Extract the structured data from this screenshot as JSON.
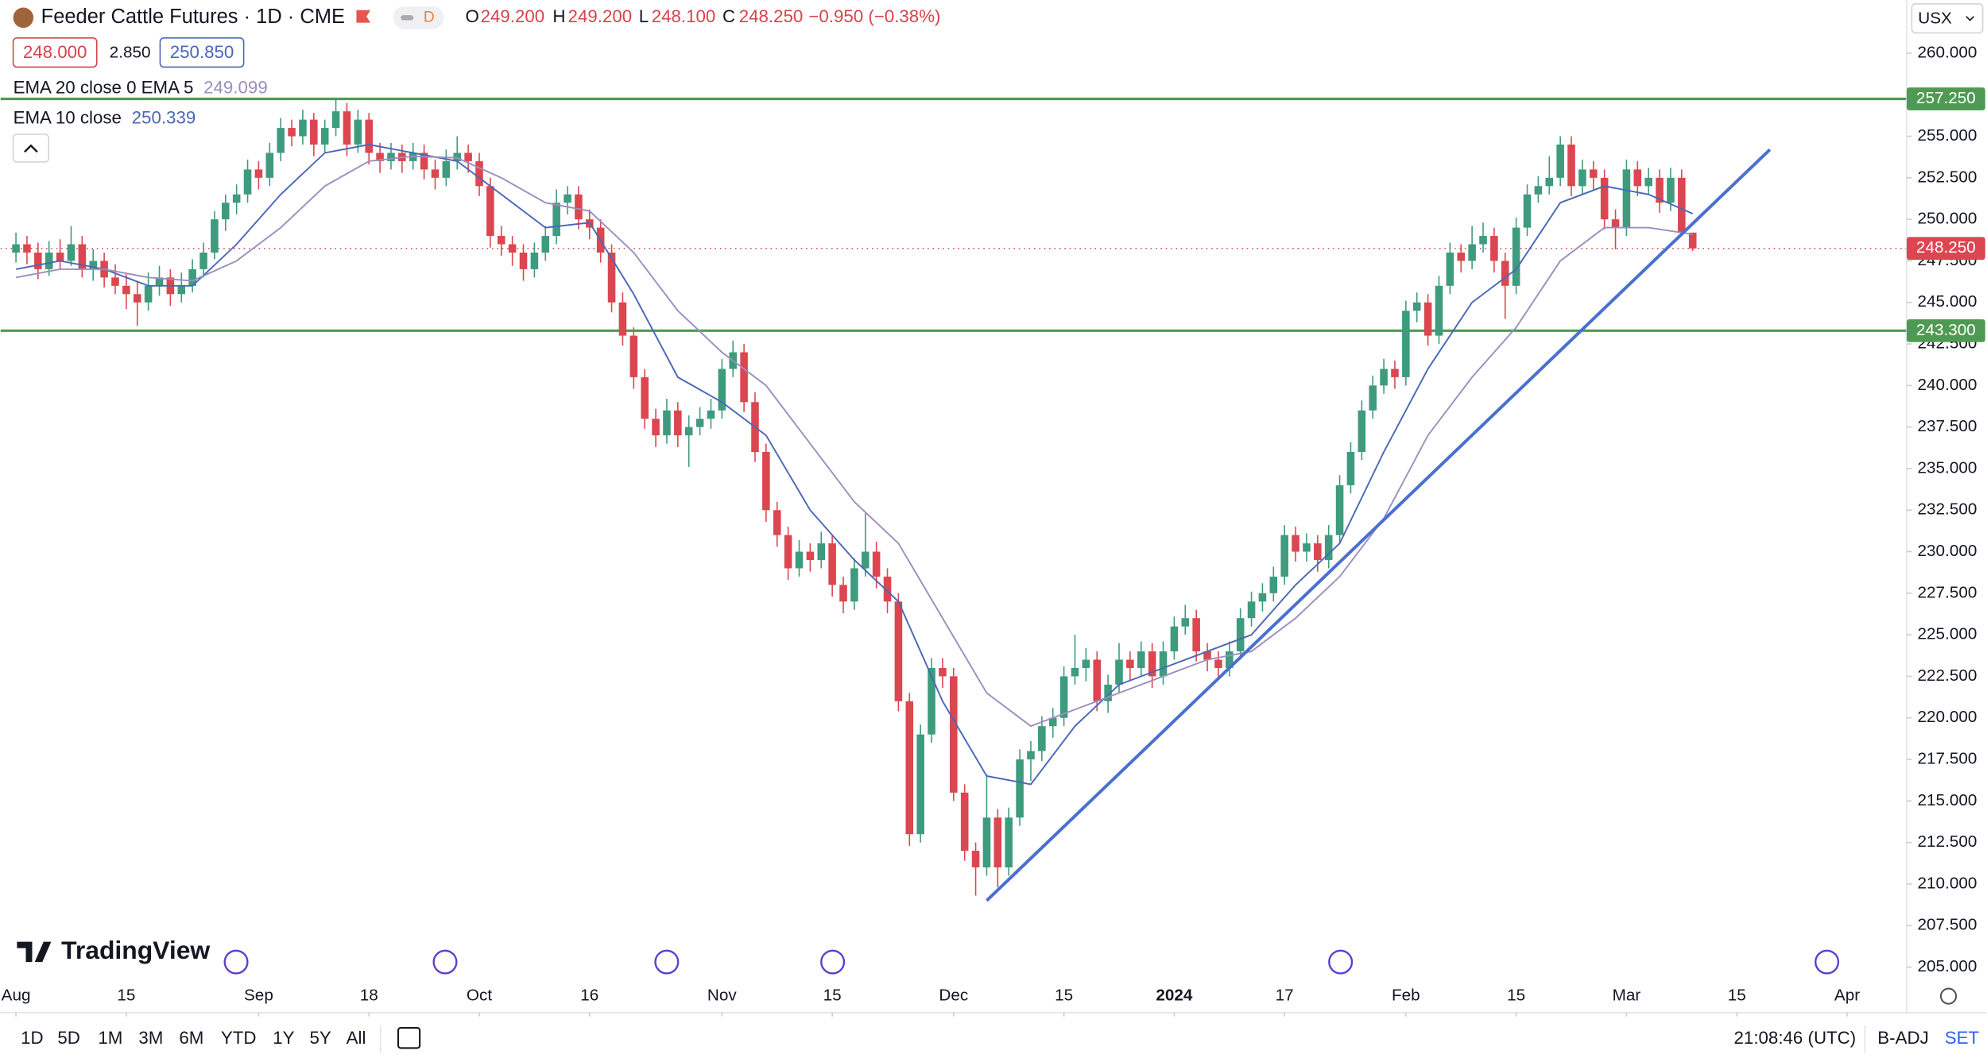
{
  "header": {
    "symbol_title": "Feeder Cattle Futures · 1D · CME",
    "badge": "D",
    "ohlc": [
      {
        "key": "O",
        "value": "249.200"
      },
      {
        "key": "H",
        "value": "249.200"
      },
      {
        "key": "L",
        "value": "248.100"
      },
      {
        "key": "C",
        "value": "248.250"
      }
    ],
    "change": "−0.950 (−0.38%)",
    "bid": "248.000",
    "spread": "2.850",
    "ask": "250.850",
    "currency": "USX"
  },
  "footer": {
    "ranges": [
      "1D",
      "5D",
      "1M",
      "3M",
      "6M",
      "YTD",
      "1Y",
      "5Y",
      "All"
    ],
    "clock": "21:08:46 (UTC)",
    "adjust": "B-ADJ",
    "settings": "SET"
  },
  "branding": "TradingView",
  "chart_data": {
    "type": "candlestick",
    "up_color": "#3e9b7e",
    "down_color": "#dc4650",
    "grid": false,
    "xlim": [
      -1.4,
      171.4
    ],
    "ylim": [
      202.26,
      263.2
    ],
    "xticks": [
      {
        "value": 0,
        "label": "Aug"
      },
      {
        "value": 10,
        "label": "15"
      },
      {
        "value": 22,
        "label": "Sep"
      },
      {
        "value": 32,
        "label": "18"
      },
      {
        "value": 42,
        "label": "Oct"
      },
      {
        "value": 52,
        "label": "16"
      },
      {
        "value": 64,
        "label": "Nov"
      },
      {
        "value": 74,
        "label": "15"
      },
      {
        "value": 85,
        "label": "Dec"
      },
      {
        "value": 95,
        "label": "15"
      },
      {
        "value": 105,
        "label": "2024"
      },
      {
        "value": 115,
        "label": "17"
      },
      {
        "value": 126,
        "label": "Feb"
      },
      {
        "value": 136,
        "label": "15"
      },
      {
        "value": 146,
        "label": "Mar"
      },
      {
        "value": 156,
        "label": "15"
      },
      {
        "value": 166,
        "label": "Apr"
      }
    ],
    "yticks": [
      {
        "value": 205,
        "label": "205.000"
      },
      {
        "value": 207.5,
        "label": "207.500"
      },
      {
        "value": 210,
        "label": "210.000"
      },
      {
        "value": 212.5,
        "label": "212.500"
      },
      {
        "value": 215,
        "label": "215.000"
      },
      {
        "value": 217.5,
        "label": "217.500"
      },
      {
        "value": 220,
        "label": "220.000"
      },
      {
        "value": 222.5,
        "label": "222.500"
      },
      {
        "value": 225,
        "label": "225.000"
      },
      {
        "value": 227.5,
        "label": "227.500"
      },
      {
        "value": 230,
        "label": "230.000"
      },
      {
        "value": 232.5,
        "label": "232.500"
      },
      {
        "value": 235,
        "label": "235.000"
      },
      {
        "value": 237.5,
        "label": "237.500"
      },
      {
        "value": 240,
        "label": "240.000"
      },
      {
        "value": 242.5,
        "label": "242.500"
      },
      {
        "value": 245,
        "label": "245.000"
      },
      {
        "value": 247.5,
        "label": "247.500"
      },
      {
        "value": 250,
        "label": "250.000"
      },
      {
        "value": 252.5,
        "label": "252.500"
      },
      {
        "value": 255,
        "label": "255.000"
      },
      {
        "value": 257.5,
        "label": "257.500"
      },
      {
        "value": 260,
        "label": "260.000"
      }
    ],
    "candles": [
      [
        248,
        249.2,
        247.4,
        248.5
      ],
      [
        248.5,
        249,
        247.3,
        248
      ],
      [
        248,
        248.6,
        246.4,
        247
      ],
      [
        247,
        248.7,
        246.6,
        248
      ],
      [
        248,
        248.8,
        247,
        247.5
      ],
      [
        247.5,
        249.6,
        247.2,
        248.5
      ],
      [
        248.5,
        249,
        246.5,
        247
      ],
      [
        247,
        248.2,
        246.3,
        247.5
      ],
      [
        247.5,
        248,
        245.9,
        246.5
      ],
      [
        246.5,
        247.3,
        245.5,
        246
      ],
      [
        246,
        246.7,
        244.6,
        245.5
      ],
      [
        245.5,
        246.3,
        243.6,
        245
      ],
      [
        245,
        246.8,
        244.5,
        246
      ],
      [
        246,
        247.2,
        245.4,
        246.5
      ],
      [
        246.5,
        247,
        244.8,
        245.5
      ],
      [
        245.5,
        246.8,
        245,
        246
      ],
      [
        246,
        247.6,
        245.6,
        247
      ],
      [
        247,
        248.6,
        246.5,
        248
      ],
      [
        248,
        250.5,
        247.6,
        250
      ],
      [
        250,
        251.5,
        249.3,
        251
      ],
      [
        251,
        252.1,
        250.3,
        251.5
      ],
      [
        251.5,
        253.6,
        251,
        253
      ],
      [
        253,
        253.5,
        251.8,
        252.5
      ],
      [
        252.5,
        254.6,
        252,
        254
      ],
      [
        254,
        256.1,
        253.5,
        255.5
      ],
      [
        255.5,
        256,
        254.4,
        255
      ],
      [
        255,
        256.6,
        254.5,
        256
      ],
      [
        256,
        256.4,
        253.8,
        254.5
      ],
      [
        254.5,
        256,
        254,
        255.5
      ],
      [
        255.5,
        257.3,
        255,
        256.5
      ],
      [
        256.5,
        257,
        253.8,
        254.5
      ],
      [
        254.5,
        256.6,
        254,
        256
      ],
      [
        256,
        256.4,
        253.3,
        254
      ],
      [
        254,
        254.6,
        252.8,
        253.5
      ],
      [
        253.5,
        254.6,
        253,
        254
      ],
      [
        254,
        254.5,
        252.8,
        253.5
      ],
      [
        253.5,
        254.6,
        253,
        254
      ],
      [
        254,
        254.5,
        252.4,
        253
      ],
      [
        253,
        253.6,
        251.8,
        252.5
      ],
      [
        252.5,
        254.2,
        252,
        253.5
      ],
      [
        253.5,
        255,
        253,
        254
      ],
      [
        254,
        254.5,
        252.8,
        253.5
      ],
      [
        253.5,
        254,
        251.4,
        252
      ],
      [
        252,
        252.5,
        248.3,
        249
      ],
      [
        249,
        249.6,
        247.8,
        248.5
      ],
      [
        248.5,
        249,
        247.2,
        248
      ],
      [
        248,
        248.5,
        246.3,
        247
      ],
      [
        247,
        248.6,
        246.5,
        248
      ],
      [
        248,
        249.6,
        247.5,
        249
      ],
      [
        249,
        251.8,
        248.5,
        251
      ],
      [
        251,
        252,
        250.3,
        251.5
      ],
      [
        251.5,
        252,
        249.4,
        250
      ],
      [
        250,
        250.6,
        248.8,
        249.5
      ],
      [
        249.5,
        250,
        247.4,
        248
      ],
      [
        248,
        248.5,
        244.4,
        245
      ],
      [
        245,
        245.6,
        242.4,
        243
      ],
      [
        243,
        243.5,
        239.8,
        240.5
      ],
      [
        240.5,
        241,
        237.4,
        238
      ],
      [
        238,
        238.6,
        236.3,
        237
      ],
      [
        237,
        239.2,
        236.5,
        238.5
      ],
      [
        238.5,
        239,
        236.3,
        237
      ],
      [
        237,
        238.2,
        235.1,
        237.5
      ],
      [
        237.5,
        238.7,
        237,
        238
      ],
      [
        238,
        239.2,
        237.4,
        238.5
      ],
      [
        238.5,
        241.6,
        238,
        241
      ],
      [
        241,
        242.7,
        240.5,
        242
      ],
      [
        242,
        242.5,
        238.4,
        239
      ],
      [
        239,
        239.6,
        235.4,
        236
      ],
      [
        236,
        236.5,
        231.8,
        232.5
      ],
      [
        232.5,
        233,
        230.3,
        231
      ],
      [
        231,
        231.5,
        228.3,
        229
      ],
      [
        229,
        230.7,
        228.5,
        230
      ],
      [
        230,
        230.5,
        228.8,
        229.5
      ],
      [
        229.5,
        231.2,
        229,
        230.5
      ],
      [
        230.5,
        231,
        227.3,
        228
      ],
      [
        228,
        228.5,
        226.3,
        227
      ],
      [
        227,
        229.6,
        226.5,
        229
      ],
      [
        229,
        232.3,
        228.5,
        230
      ],
      [
        230,
        230.6,
        227.8,
        228.5
      ],
      [
        228.5,
        229,
        226.3,
        227
      ],
      [
        227,
        227.5,
        220.4,
        221
      ],
      [
        221,
        221.5,
        212.3,
        213
      ],
      [
        213,
        219.6,
        212.5,
        219
      ],
      [
        219,
        223.6,
        218.5,
        223
      ],
      [
        223,
        223.6,
        221.8,
        222.5
      ],
      [
        222.5,
        223,
        215,
        215.5
      ],
      [
        215.5,
        216,
        211.4,
        212
      ],
      [
        212,
        212.5,
        209.3,
        211
      ],
      [
        211,
        216.6,
        210.5,
        214
      ],
      [
        214,
        214.5,
        209.8,
        211
      ],
      [
        211,
        214.6,
        210.5,
        214
      ],
      [
        214,
        218.1,
        213.5,
        217.5
      ],
      [
        217.5,
        218.6,
        216.2,
        218
      ],
      [
        218,
        220.1,
        217.4,
        219.5
      ],
      [
        219.5,
        220.6,
        218.8,
        220
      ],
      [
        220,
        223.1,
        219.5,
        222.5
      ],
      [
        222.5,
        225,
        222,
        223
      ],
      [
        223,
        224.2,
        222.2,
        223.5
      ],
      [
        223.5,
        224,
        220.4,
        221
      ],
      [
        221,
        222.6,
        220.3,
        222
      ],
      [
        222,
        224.5,
        221.5,
        223.5
      ],
      [
        223.5,
        224,
        222.2,
        223
      ],
      [
        223,
        224.6,
        222.5,
        224
      ],
      [
        224,
        224.5,
        221.8,
        222.5
      ],
      [
        222.5,
        224.6,
        222,
        224
      ],
      [
        224,
        226.1,
        223.5,
        225.5
      ],
      [
        225.5,
        226.8,
        225,
        226
      ],
      [
        226,
        226.5,
        223.4,
        224
      ],
      [
        224,
        224.5,
        222.8,
        223.5
      ],
      [
        223.5,
        224,
        222.4,
        223
      ],
      [
        223,
        224.6,
        222.5,
        224
      ],
      [
        224,
        226.6,
        223.5,
        226
      ],
      [
        226,
        227.6,
        225.5,
        227
      ],
      [
        227,
        228.1,
        226.4,
        227.5
      ],
      [
        227.5,
        229.1,
        227,
        228.5
      ],
      [
        228.5,
        231.6,
        228,
        231
      ],
      [
        231,
        231.5,
        229.4,
        230
      ],
      [
        230,
        231.1,
        229.4,
        230.5
      ],
      [
        230.5,
        231,
        228.8,
        229.5
      ],
      [
        229.5,
        231.6,
        229,
        231
      ],
      [
        231,
        234.6,
        230.5,
        234
      ],
      [
        234,
        236.6,
        233.5,
        236
      ],
      [
        236,
        239.1,
        235.5,
        238.5
      ],
      [
        238.5,
        240.6,
        238,
        240
      ],
      [
        240,
        241.6,
        239.5,
        241
      ],
      [
        241,
        241.5,
        239.8,
        240.5
      ],
      [
        240.5,
        245.1,
        240,
        244.5
      ],
      [
        244.5,
        245.6,
        243.8,
        245
      ],
      [
        245,
        245.5,
        242.4,
        243
      ],
      [
        243,
        246.6,
        242.5,
        246
      ],
      [
        246,
        248.6,
        245.5,
        248
      ],
      [
        248,
        248.5,
        246.8,
        247.5
      ],
      [
        247.5,
        249.6,
        247,
        248.5
      ],
      [
        248.5,
        249.8,
        248,
        249
      ],
      [
        249,
        249.5,
        246.8,
        247.5
      ],
      [
        247.5,
        248,
        244,
        246
      ],
      [
        246,
        250.1,
        245.5,
        249.5
      ],
      [
        249.5,
        252.1,
        249,
        251.5
      ],
      [
        251.5,
        252.6,
        251,
        252
      ],
      [
        252,
        253.8,
        251.5,
        252.5
      ],
      [
        252.5,
        255,
        252,
        254.5
      ],
      [
        254.5,
        255,
        251.4,
        252
      ],
      [
        252,
        253.6,
        251.5,
        253
      ],
      [
        253,
        253.5,
        251.8,
        252.5
      ],
      [
        252.5,
        253,
        249.4,
        250
      ],
      [
        250,
        250.6,
        248.2,
        249.5
      ],
      [
        249.5,
        253.6,
        249,
        253
      ],
      [
        253,
        253.5,
        251.4,
        252
      ],
      [
        252,
        253.1,
        251.5,
        252.5
      ],
      [
        252.5,
        253,
        250.4,
        251
      ],
      [
        251,
        253.1,
        250.5,
        252.5
      ],
      [
        252.5,
        253,
        249,
        249.2
      ],
      [
        249.2,
        249.2,
        248.1,
        248.25
      ]
    ],
    "series": [
      {
        "name": "EMA 10 close",
        "value_label": "250.339",
        "color": "#4a67b6",
        "x": [
          0,
          4,
          8,
          12,
          16,
          20,
          24,
          28,
          32,
          36,
          40,
          44,
          48,
          52,
          56,
          60,
          64,
          68,
          72,
          76,
          80,
          84,
          88,
          92,
          96,
          100,
          104,
          108,
          112,
          116,
          120,
          124,
          128,
          132,
          136,
          140,
          144,
          148,
          152
        ],
        "values": [
          247,
          247.5,
          247,
          246,
          246,
          248.5,
          251.5,
          254,
          254.5,
          254,
          253.5,
          251.5,
          249.5,
          249.8,
          245.5,
          240.5,
          239,
          237,
          232.5,
          229.5,
          227,
          221,
          216.5,
          216,
          219.5,
          222,
          223,
          224,
          225,
          228,
          230.5,
          236,
          241,
          245,
          247,
          251,
          252,
          251.5,
          250.339
        ]
      },
      {
        "name": "EMA 20 close 0 EMA 5",
        "value_label": "249.099",
        "color": "#9a8fbd",
        "x": [
          0,
          4,
          8,
          12,
          16,
          20,
          24,
          28,
          32,
          36,
          40,
          44,
          48,
          52,
          56,
          60,
          64,
          68,
          72,
          76,
          80,
          84,
          88,
          92,
          96,
          100,
          104,
          108,
          112,
          116,
          120,
          124,
          128,
          132,
          136,
          140,
          144,
          148,
          152
        ],
        "values": [
          246.5,
          247,
          247,
          246.5,
          246.3,
          247.5,
          249.5,
          252,
          253.5,
          253.8,
          253.7,
          252.5,
          251,
          250.5,
          248,
          244.5,
          242,
          240,
          236.5,
          233,
          230.5,
          226,
          221.5,
          219.5,
          220.5,
          221.5,
          222.5,
          223.5,
          224,
          226,
          228.5,
          232,
          237,
          240.5,
          243.5,
          247.5,
          249.5,
          249.5,
          249.099
        ]
      }
    ],
    "hlines": [
      {
        "value": 257.25,
        "label": "257.250",
        "color": "#4f9a52"
      },
      {
        "value": 243.3,
        "label": "243.300",
        "color": "#4f9a52"
      }
    ],
    "last_price": {
      "value": 248.25,
      "label": "248.250",
      "color": "#dc4650"
    },
    "trendline": {
      "color": "#4a6fd0",
      "x": [
        88,
        159
      ],
      "y": [
        209,
        254.2
      ]
    }
  }
}
